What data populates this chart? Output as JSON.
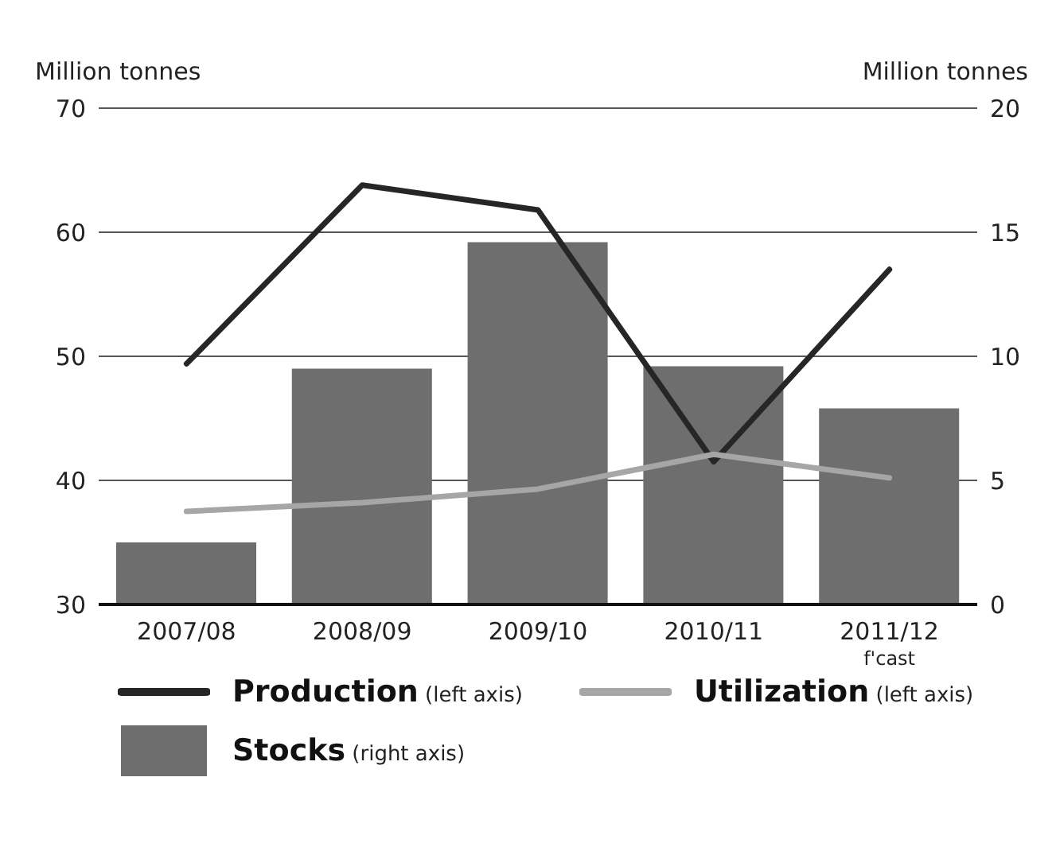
{
  "chart_data": {
    "type": "bar",
    "ylabel": "Million tonnes",
    "y2label": "Million tonnes",
    "categories": [
      "2007/08",
      "2008/09",
      "2009/10",
      "2010/11",
      "2011/12$_{f'cast}$"
    ],
    "series": [
      {
        "name": "Production (left axis)",
        "type": "line",
        "color": "#262626",
        "values": [
          49.4,
          63.8,
          61.8,
          41.5,
          57.0
        ]
      },
      {
        "name": "Utilization (left axis)",
        "type": "line",
        "color": "#a6a6a6",
        "values": [
          37.5,
          38.2,
          39.3,
          42.1,
          40.2
        ]
      },
      {
        "name": "Stocks (right axis)",
        "axis": "y2",
        "color": "#6e6e6e",
        "values": [
          2.5,
          9.5,
          14.6,
          9.6,
          7.9
        ]
      }
    ],
    "ylim": [
      30,
      70
    ],
    "yticks": [
      30,
      40,
      50,
      60,
      70
    ],
    "y2lim": [
      0,
      20
    ],
    "y2ticks": [
      0,
      5,
      10,
      15,
      20
    ],
    "grid": "y",
    "legend": "bottom",
    "marker": "none",
    "line_style": "solid"
  }
}
